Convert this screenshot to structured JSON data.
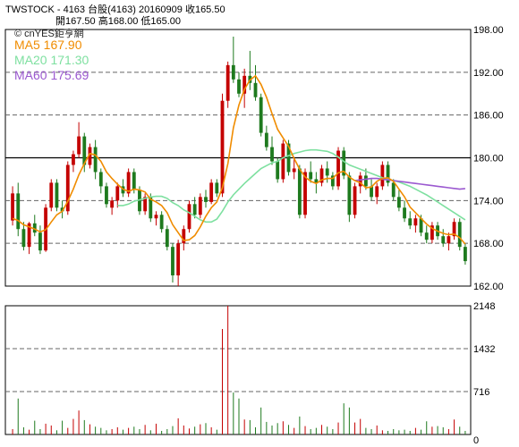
{
  "header": {
    "line1": "TWSTOCK - 4163 台股(4163) 20160909 收165.50",
    "line2": "開167.50 高168.00 低165.00"
  },
  "legend": {
    "brand": "© cnYES鉅亨網",
    "ma5": "MA5 167.90",
    "ma20": "MA20 171.30",
    "ma60": "MA60 175.69"
  },
  "colors": {
    "up": "#c40000",
    "down": "#1e7a1e",
    "ma5": "#f08c00",
    "ma20": "#7ee0a0",
    "ma60": "#9b59d0",
    "grid_dash": "#666666",
    "frame": "#000000"
  },
  "chart_data": [
    {
      "type": "candlestick",
      "y_ticks": [
        "198.00",
        "192.00",
        "186.00",
        "180.00",
        "174.00",
        "168.00",
        "162.00"
      ],
      "ylim": [
        162,
        198
      ],
      "reference_line": 180,
      "last": {
        "open": 167.5,
        "high": 168.0,
        "low": 165.0,
        "close": 165.5
      },
      "candles": [
        [
          171.2,
          176.0,
          170.5,
          175.0
        ],
        [
          175.0,
          176.5,
          169.0,
          170.0
        ],
        [
          170.0,
          171.0,
          167.0,
          167.5
        ],
        [
          167.5,
          171.0,
          166.5,
          170.8
        ],
        [
          170.8,
          172.0,
          169.0,
          169.5
        ],
        [
          169.5,
          170.5,
          166.5,
          167.0
        ],
        [
          167.0,
          173.5,
          166.8,
          173.0
        ],
        [
          173.0,
          177.0,
          172.5,
          176.5
        ],
        [
          176.5,
          177.0,
          172.5,
          173.0
        ],
        [
          173.0,
          174.0,
          171.5,
          172.5
        ],
        [
          172.5,
          179.5,
          172.0,
          179.0
        ],
        [
          179.0,
          181.0,
          178.0,
          180.5
        ],
        [
          180.5,
          185.0,
          180.0,
          183.0
        ],
        [
          183.0,
          183.5,
          178.0,
          179.0
        ],
        [
          179.0,
          182.0,
          178.5,
          181.5
        ],
        [
          181.5,
          182.5,
          177.0,
          178.0
        ],
        [
          178.0,
          178.5,
          175.0,
          176.0
        ],
        [
          176.0,
          176.5,
          173.0,
          173.5
        ],
        [
          173.0,
          174.5,
          172.0,
          174.0
        ],
        [
          174.0,
          176.5,
          173.0,
          176.0
        ],
        [
          176.0,
          177.0,
          174.5,
          175.0
        ],
        [
          175.0,
          178.5,
          174.5,
          178.0
        ],
        [
          178.0,
          178.5,
          175.0,
          175.5
        ],
        [
          175.5,
          176.0,
          172.0,
          172.5
        ],
        [
          172.5,
          175.0,
          172.0,
          174.5
        ],
        [
          174.5,
          175.0,
          171.0,
          171.5
        ],
        [
          171.5,
          172.5,
          170.5,
          172.0
        ],
        [
          172.0,
          172.5,
          169.5,
          170.0
        ],
        [
          170.0,
          170.5,
          167.0,
          167.5
        ],
        [
          167.5,
          168.0,
          162.5,
          163.5
        ],
        [
          163.5,
          168.5,
          162.0,
          168.0
        ],
        [
          168.0,
          170.5,
          167.0,
          170.0
        ],
        [
          170.0,
          174.0,
          169.5,
          173.5
        ],
        [
          173.5,
          174.5,
          171.5,
          172.0
        ],
        [
          172.0,
          175.0,
          171.5,
          174.5
        ],
        [
          174.5,
          175.5,
          173.0,
          173.8
        ],
        [
          173.8,
          177.0,
          173.5,
          176.5
        ],
        [
          176.5,
          177.0,
          174.5,
          175.0
        ],
        [
          175.0,
          189.0,
          174.5,
          188.0
        ],
        [
          188.0,
          193.5,
          187.0,
          193.0
        ],
        [
          193.0,
          197.0,
          190.5,
          191.0
        ],
        [
          191.0,
          192.0,
          188.5,
          189.0
        ],
        [
          189.0,
          192.5,
          187.0,
          191.5
        ],
        [
          191.5,
          195.0,
          189.5,
          190.5
        ],
        [
          190.5,
          193.0,
          188.0,
          188.5
        ],
        [
          188.5,
          189.0,
          183.0,
          183.5
        ],
        [
          183.5,
          184.5,
          181.0,
          181.5
        ],
        [
          181.5,
          183.0,
          179.0,
          179.5
        ],
        [
          179.5,
          180.0,
          176.5,
          177.0
        ],
        [
          177.0,
          182.5,
          176.5,
          182.0
        ],
        [
          182.0,
          182.5,
          177.5,
          178.0
        ],
        [
          178.0,
          180.0,
          177.0,
          178.5
        ],
        [
          178.5,
          179.0,
          171.5,
          172.0
        ],
        [
          172.0,
          178.5,
          171.5,
          178.0
        ],
        [
          178.0,
          179.5,
          176.5,
          177.0
        ],
        [
          177.0,
          178.0,
          175.0,
          176.5
        ],
        [
          176.5,
          179.0,
          176.0,
          178.5
        ],
        [
          178.5,
          179.5,
          176.5,
          177.5
        ],
        [
          177.5,
          178.0,
          175.5,
          176.0
        ],
        [
          176.0,
          181.5,
          175.5,
          181.0
        ],
        [
          181.0,
          181.5,
          177.0,
          177.5
        ],
        [
          177.5,
          178.0,
          171.0,
          172.0
        ],
        [
          172.0,
          176.5,
          171.5,
          176.0
        ],
        [
          176.0,
          178.0,
          175.0,
          177.5
        ],
        [
          177.5,
          178.5,
          175.5,
          176.0
        ],
        [
          176.0,
          177.0,
          174.0,
          174.5
        ],
        [
          174.5,
          176.5,
          173.5,
          176.0
        ],
        [
          176.0,
          179.5,
          175.5,
          179.0
        ],
        [
          179.0,
          179.5,
          176.0,
          176.5
        ],
        [
          176.5,
          177.0,
          174.0,
          174.5
        ],
        [
          174.5,
          175.5,
          172.5,
          173.0
        ],
        [
          173.0,
          174.0,
          171.0,
          171.5
        ],
        [
          171.5,
          172.5,
          170.0,
          170.5
        ],
        [
          170.5,
          172.0,
          169.5,
          171.5
        ],
        [
          171.5,
          172.0,
          169.0,
          169.5
        ],
        [
          169.5,
          170.5,
          168.0,
          168.5
        ],
        [
          168.5,
          171.0,
          168.0,
          170.5
        ],
        [
          170.5,
          171.0,
          168.5,
          169.0
        ],
        [
          169.0,
          170.0,
          167.5,
          168.0
        ],
        [
          168.0,
          169.5,
          167.0,
          169.0
        ],
        [
          169.0,
          171.5,
          168.5,
          171.0
        ],
        [
          171.0,
          171.5,
          167.0,
          167.5
        ],
        [
          167.5,
          168.0,
          165.0,
          165.5
        ]
      ],
      "ma5": [
        171.5,
        171.2,
        170.6,
        170.3,
        170.0,
        169.6,
        169.9,
        171.0,
        172.0,
        172.5,
        173.9,
        175.6,
        177.6,
        179.2,
        180.6,
        180.4,
        179.5,
        178.0,
        177.1,
        176.3,
        175.6,
        175.3,
        175.6,
        175.5,
        175.2,
        174.2,
        173.8,
        173.3,
        172.3,
        170.6,
        169.5,
        168.4,
        168.5,
        169.1,
        170.3,
        171.8,
        173.0,
        173.8,
        175.8,
        179.2,
        184.2,
        187.4,
        189.6,
        190.9,
        191.5,
        190.3,
        188.5,
        186.2,
        184.0,
        182.8,
        181.6,
        179.9,
        178.4,
        177.3,
        176.7,
        176.4,
        176.9,
        177.1,
        177.1,
        177.9,
        178.1,
        177.3,
        176.8,
        176.5,
        175.8,
        175.9,
        176.7,
        177.1,
        177.2,
        176.7,
        175.6,
        174.5,
        173.1,
        172.3,
        171.5,
        170.7,
        170.1,
        169.7,
        169.4,
        169.2,
        169.3,
        168.8,
        167.9
      ],
      "ma20": [
        null,
        null,
        null,
        null,
        null,
        null,
        null,
        null,
        null,
        null,
        null,
        null,
        null,
        null,
        null,
        null,
        null,
        null,
        null,
        173.3,
        173.3,
        173.5,
        173.9,
        174.1,
        174.3,
        174.5,
        174.6,
        174.6,
        174.3,
        173.7,
        173.3,
        172.7,
        172.3,
        171.8,
        171.3,
        171.0,
        171.0,
        171.4,
        172.5,
        173.8,
        174.8,
        175.6,
        176.4,
        177.1,
        177.8,
        178.5,
        178.9,
        179.3,
        179.5,
        180.0,
        180.3,
        180.6,
        180.8,
        181.0,
        181.1,
        181.1,
        181.0,
        180.9,
        180.6,
        180.1,
        179.5,
        179.0,
        178.7,
        178.4,
        178.1,
        177.8,
        177.5,
        177.2,
        177.0,
        176.8,
        176.6,
        176.3,
        176.0,
        175.6,
        175.2,
        174.8,
        174.3,
        173.8,
        173.3,
        172.8,
        172.3,
        171.8,
        171.3
      ],
      "ma60": [
        null,
        null,
        null,
        null,
        null,
        null,
        null,
        null,
        null,
        null,
        null,
        null,
        null,
        null,
        null,
        null,
        null,
        null,
        null,
        null,
        null,
        null,
        null,
        null,
        null,
        null,
        null,
        null,
        null,
        null,
        null,
        null,
        null,
        null,
        null,
        null,
        null,
        null,
        null,
        null,
        null,
        null,
        null,
        null,
        null,
        null,
        null,
        null,
        null,
        null,
        null,
        null,
        null,
        null,
        null,
        null,
        null,
        null,
        null,
        null,
        null,
        null,
        176.8,
        176.9,
        177.0,
        177.1,
        177.1,
        177.0,
        176.9,
        176.8,
        176.7,
        176.6,
        176.5,
        176.4,
        176.3,
        176.2,
        176.1,
        176.0,
        175.9,
        175.8,
        175.7,
        175.6,
        175.69
      ]
    },
    {
      "type": "bar",
      "y_ticks": [
        "2148",
        "1432",
        "716",
        "0"
      ],
      "ylim": [
        0,
        2148
      ],
      "values": [
        90,
        600,
        120,
        80,
        230,
        90,
        180,
        150,
        70,
        230,
        110,
        260,
        400,
        240,
        170,
        130,
        110,
        70,
        90,
        120,
        80,
        110,
        130,
        90,
        160,
        70,
        180,
        60,
        90,
        140,
        270,
        150,
        100,
        130,
        170,
        190,
        120,
        80,
        1760,
        2148,
        700,
        600,
        250,
        240,
        120,
        450,
        210,
        150,
        190,
        220,
        160,
        110,
        300,
        140,
        90,
        110,
        160,
        130,
        90,
        200,
        520,
        450,
        200,
        260,
        110,
        90,
        150,
        70,
        60,
        90,
        70,
        80,
        60,
        110,
        80,
        220,
        130,
        140,
        120,
        90,
        250,
        130,
        60
      ]
    }
  ]
}
